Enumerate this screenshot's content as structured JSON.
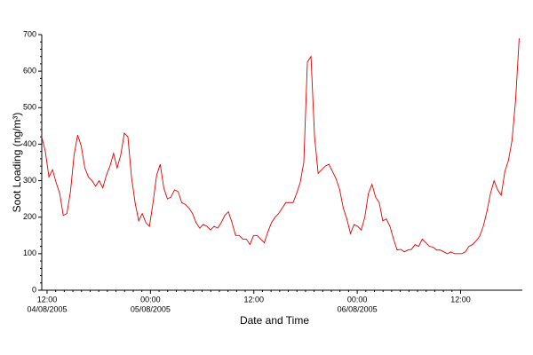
{
  "chart_data": {
    "type": "line",
    "y_label": "Soot Loading (ng/m³)",
    "x_label": "Date and Time",
    "color": "#e00000",
    "grid": false,
    "x": [
      "2005-08-04T11:23",
      "2005-08-04T11:48",
      "2005-08-04T12:13",
      "2005-08-04T12:38",
      "2005-08-04T13:03",
      "2005-08-04T13:28",
      "2005-08-04T13:53",
      "2005-08-04T14:18",
      "2005-08-04T14:43",
      "2005-08-04T15:08",
      "2005-08-04T15:33",
      "2005-08-04T15:58",
      "2005-08-04T16:23",
      "2005-08-04T16:48",
      "2005-08-04T17:13",
      "2005-08-04T17:38",
      "2005-08-04T18:03",
      "2005-08-04T18:28",
      "2005-08-04T18:53",
      "2005-08-04T19:18",
      "2005-08-04T19:43",
      "2005-08-04T20:08",
      "2005-08-04T20:33",
      "2005-08-04T20:58",
      "2005-08-04T21:23",
      "2005-08-04T21:48",
      "2005-08-04T22:13",
      "2005-08-04T22:38",
      "2005-08-04T23:03",
      "2005-08-04T23:28",
      "2005-08-04T23:53",
      "2005-08-05T00:18",
      "2005-08-05T00:43",
      "2005-08-05T01:08",
      "2005-08-05T01:33",
      "2005-08-05T01:58",
      "2005-08-05T02:23",
      "2005-08-05T02:48",
      "2005-08-05T03:13",
      "2005-08-05T03:38",
      "2005-08-05T04:03",
      "2005-08-05T04:28",
      "2005-08-05T04:53",
      "2005-08-05T05:18",
      "2005-08-05T05:43",
      "2005-08-05T06:08",
      "2005-08-05T06:33",
      "2005-08-05T06:58",
      "2005-08-05T07:23",
      "2005-08-05T07:48",
      "2005-08-05T08:13",
      "2005-08-05T08:38",
      "2005-08-05T09:03",
      "2005-08-05T09:28",
      "2005-08-05T09:53",
      "2005-08-05T10:18",
      "2005-08-05T10:43",
      "2005-08-05T11:08",
      "2005-08-05T11:33",
      "2005-08-05T11:58",
      "2005-08-05T12:23",
      "2005-08-05T12:48",
      "2005-08-05T13:13",
      "2005-08-05T13:38",
      "2005-08-05T14:03",
      "2005-08-05T14:28",
      "2005-08-05T14:53",
      "2005-08-05T15:18",
      "2005-08-05T15:43",
      "2005-08-05T16:08",
      "2005-08-05T16:33",
      "2005-08-05T16:58",
      "2005-08-05T17:23",
      "2005-08-05T17:48",
      "2005-08-05T18:13",
      "2005-08-05T18:38",
      "2005-08-05T19:03",
      "2005-08-05T19:28",
      "2005-08-05T19:53",
      "2005-08-05T20:18",
      "2005-08-05T20:43",
      "2005-08-05T21:08",
      "2005-08-05T21:33",
      "2005-08-05T21:58",
      "2005-08-05T22:23",
      "2005-08-05T22:48",
      "2005-08-05T23:13",
      "2005-08-05T23:38",
      "2005-08-06T00:03",
      "2005-08-06T00:28",
      "2005-08-06T00:53",
      "2005-08-06T01:18",
      "2005-08-06T01:43",
      "2005-08-06T02:08",
      "2005-08-06T02:33",
      "2005-08-06T02:58",
      "2005-08-06T03:23",
      "2005-08-06T03:48",
      "2005-08-06T04:13",
      "2005-08-06T04:38",
      "2005-08-06T05:03",
      "2005-08-06T05:28",
      "2005-08-06T05:53",
      "2005-08-06T06:18",
      "2005-08-06T06:43",
      "2005-08-06T07:08",
      "2005-08-06T07:33",
      "2005-08-06T07:58",
      "2005-08-06T08:23",
      "2005-08-06T08:48",
      "2005-08-06T09:13",
      "2005-08-06T09:38",
      "2005-08-06T10:03",
      "2005-08-06T10:28",
      "2005-08-06T10:53",
      "2005-08-06T11:18",
      "2005-08-06T11:43",
      "2005-08-06T12:08",
      "2005-08-06T12:33",
      "2005-08-06T12:58",
      "2005-08-06T13:23",
      "2005-08-06T13:48",
      "2005-08-06T14:13",
      "2005-08-06T14:38",
      "2005-08-06T15:03",
      "2005-08-06T15:28",
      "2005-08-06T15:53",
      "2005-08-06T16:18",
      "2005-08-06T16:43",
      "2005-08-06T17:08",
      "2005-08-06T17:33",
      "2005-08-06T17:58",
      "2005-08-06T18:23",
      "2005-08-06T18:48"
    ],
    "values": [
      420,
      380,
      310,
      330,
      295,
      265,
      205,
      210,
      270,
      370,
      425,
      395,
      335,
      310,
      300,
      285,
      300,
      280,
      315,
      340,
      375,
      335,
      370,
      430,
      420,
      310,
      240,
      190,
      210,
      185,
      175,
      240,
      315,
      345,
      280,
      250,
      255,
      275,
      270,
      240,
      235,
      225,
      210,
      185,
      170,
      180,
      175,
      165,
      175,
      170,
      185,
      205,
      215,
      185,
      150,
      150,
      140,
      140,
      125,
      150,
      150,
      140,
      130,
      160,
      185,
      200,
      210,
      225,
      240,
      240,
      240,
      265,
      295,
      350,
      625,
      640,
      420,
      320,
      330,
      340,
      345,
      325,
      305,
      275,
      225,
      195,
      155,
      180,
      175,
      165,
      200,
      265,
      290,
      255,
      240,
      190,
      195,
      175,
      140,
      110,
      112,
      105,
      110,
      112,
      125,
      120,
      140,
      130,
      120,
      118,
      110,
      110,
      105,
      100,
      105,
      100,
      100,
      100,
      105,
      120,
      125,
      135,
      148,
      175,
      215,
      265,
      300,
      275,
      260,
      325,
      355,
      410,
      520,
      690
    ],
    "xlim": [
      "2005-08-04T11:23",
      "2005-08-06T19:10"
    ],
    "xticks": [
      {
        "value": "2005-08-04T12:00",
        "label": [
          "12:00",
          "04/08/2005"
        ]
      },
      {
        "value": "2005-08-05T00:00",
        "label": [
          "00:00",
          "05/08/2005"
        ]
      },
      {
        "value": "2005-08-05T12:00",
        "label": [
          "12:00",
          ""
        ]
      },
      {
        "value": "2005-08-06T00:00",
        "label": [
          "00:00",
          "06/08/2005"
        ]
      },
      {
        "value": "2005-08-06T12:00",
        "label": [
          "12:00",
          ""
        ]
      }
    ],
    "ylim": [
      0,
      700
    ],
    "yticks": [
      0,
      100,
      200,
      300,
      400,
      500,
      600,
      700
    ]
  }
}
